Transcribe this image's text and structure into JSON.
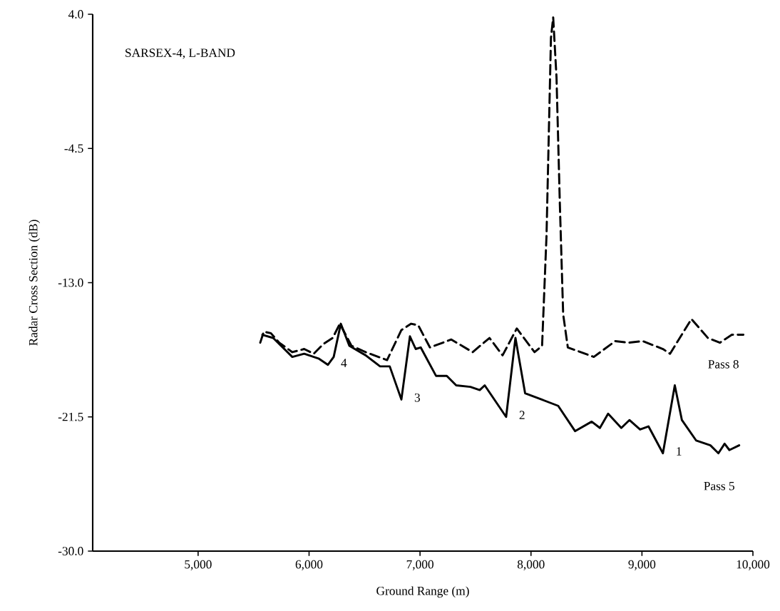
{
  "chart_data": {
    "type": "line",
    "title": "SARSEX-4, L-BAND",
    "xlabel": "Ground Range (m)",
    "ylabel": "Radar Cross Section (dB)",
    "xlim": [
      4050,
      10000
    ],
    "ylim": [
      -30,
      4
    ],
    "xticks": [
      {
        "value": 5000,
        "label": "5,000"
      },
      {
        "value": 6000,
        "label": "6,000"
      },
      {
        "value": 7000,
        "label": "7,000"
      },
      {
        "value": 8000,
        "label": "8,000"
      },
      {
        "value": 9000,
        "label": "9,000"
      },
      {
        "value": 10000,
        "label": "10,000"
      }
    ],
    "yticks": [
      {
        "value": -30,
        "label": "-30.0"
      },
      {
        "value": -21.5,
        "label": "-21.5"
      },
      {
        "value": -13,
        "label": "-13.0"
      },
      {
        "value": -4.5,
        "label": "-4.5"
      },
      {
        "value": 4,
        "label": "4.0"
      }
    ],
    "series": [
      {
        "name": "Pass 8",
        "color": "#000000",
        "line_style": "dashed",
        "x": [
          5560,
          5592,
          5656,
          5731,
          5849,
          5956,
          6042,
          6126,
          6213,
          6277,
          6383,
          6510,
          6703,
          6832,
          6920,
          6984,
          7089,
          7282,
          7474,
          7626,
          7744,
          7872,
          8032,
          8100,
          8140,
          8180,
          8200,
          8230,
          8260,
          8290,
          8332,
          8566,
          8760,
          8878,
          9007,
          9189,
          9253,
          9446,
          9594,
          9702,
          9810,
          9914
        ],
        "values": [
          -16.8,
          -16.1,
          -16.2,
          -16.8,
          -17.4,
          -17.2,
          -17.5,
          -16.9,
          -16.5,
          -15.6,
          -17.0,
          -17.4,
          -17.9,
          -16.0,
          -15.6,
          -15.7,
          -17.1,
          -16.6,
          -17.4,
          -16.5,
          -17.6,
          -15.9,
          -17.4,
          -17.0,
          -10,
          2.5,
          3.8,
          0,
          -8,
          -15,
          -17.1,
          -17.7,
          -16.7,
          -16.8,
          -16.7,
          -17.2,
          -17.5,
          -15.3,
          -16.5,
          -16.8,
          -16.3,
          -16.3
        ]
      },
      {
        "name": "Pass 5",
        "color": "#000000",
        "line_style": "solid",
        "x": [
          5579,
          5676,
          5849,
          5956,
          6085,
          6170,
          6222,
          6286,
          6363,
          6510,
          6640,
          6727,
          6832,
          6909,
          6961,
          7006,
          7144,
          7241,
          7326,
          7454,
          7538,
          7583,
          7776,
          7860,
          7947,
          8097,
          8245,
          8397,
          8547,
          8621,
          8695,
          8814,
          8887,
          8983,
          9059,
          9189,
          9296,
          9360,
          9489,
          9617,
          9689,
          9745,
          9788,
          9876
        ],
        "values": [
          -16.3,
          -16.5,
          -17.7,
          -17.5,
          -17.8,
          -18.2,
          -17.7,
          -15.6,
          -17.0,
          -17.6,
          -18.3,
          -18.3,
          -20.4,
          -16.4,
          -17.2,
          -17.1,
          -18.9,
          -18.9,
          -19.5,
          -19.6,
          -19.8,
          -19.5,
          -21.5,
          -16.5,
          -20.0,
          -20.4,
          -20.8,
          -22.4,
          -21.8,
          -22.2,
          -21.3,
          -22.2,
          -21.7,
          -22.3,
          -22.1,
          -23.8,
          -19.5,
          -21.7,
          -23.0,
          -23.3,
          -23.8,
          -23.2,
          -23.6,
          -23.3
        ]
      }
    ],
    "annotations": [
      {
        "text": "1",
        "x": 9189,
        "y": -23.8
      },
      {
        "text": "2",
        "x": 7776,
        "y": -21.5
      },
      {
        "text": "3",
        "x": 6832,
        "y": -20.4
      },
      {
        "text": "4",
        "x": 6170,
        "y": -18.2
      }
    ]
  }
}
